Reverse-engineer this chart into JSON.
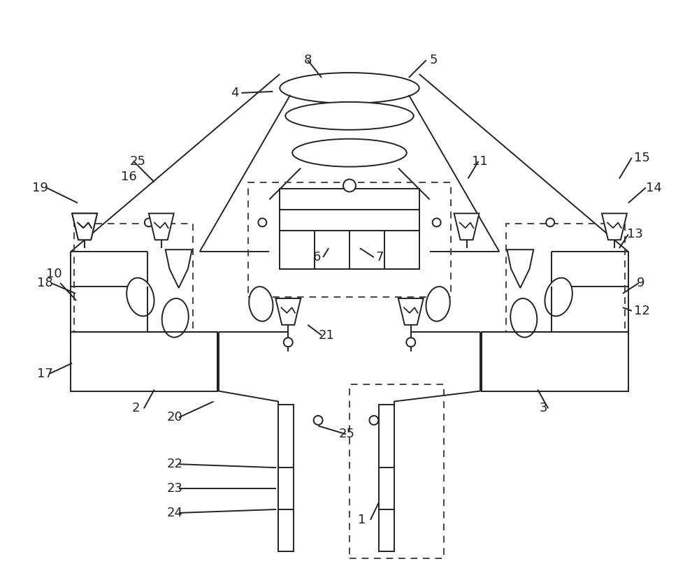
{
  "bg_color": "#ffffff",
  "line_color": "#222222",
  "lw": 1.4,
  "lw_thick": 2.0,
  "fs_label": 13
}
